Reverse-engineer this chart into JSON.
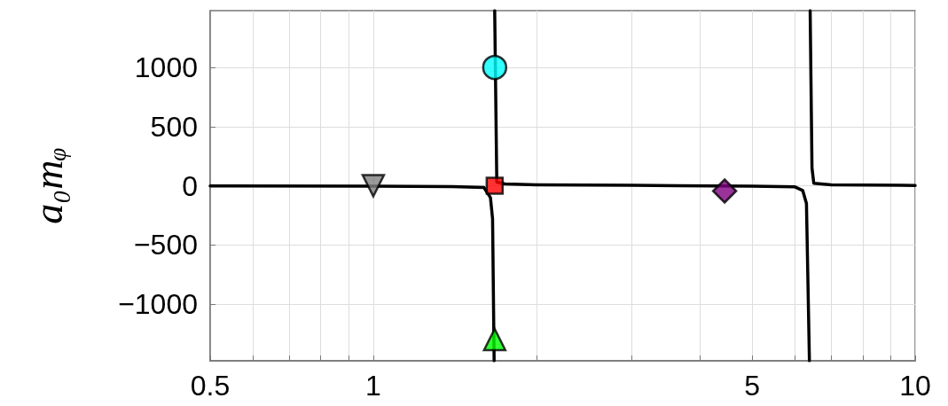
{
  "chart_data": {
    "type": "line",
    "ylabel": "a₀mᵩ",
    "log": "x",
    "grid": true,
    "xlim": [
      0.5,
      10
    ],
    "xticks": [
      0.5,
      {
        "value": 0.6,
        "label": null
      },
      {
        "value": 0.7,
        "label": null
      },
      {
        "value": 0.8,
        "label": null
      },
      {
        "value": 0.9,
        "label": null
      },
      1,
      {
        "value": 2,
        "label": null
      },
      {
        "value": 3,
        "label": null
      },
      {
        "value": 4,
        "label": null
      },
      5,
      {
        "value": 6,
        "label": null
      },
      {
        "value": 7,
        "label": null
      },
      {
        "value": 8,
        "label": null
      },
      {
        "value": 9,
        "label": null
      },
      10
    ],
    "ylim": [
      -1480,
      1480
    ],
    "yticks": [
      -1000,
      -500,
      0,
      500,
      1000
    ],
    "series": [
      {
        "color": "#000000",
        "marker": "none",
        "x": [
          0.5,
          1,
          1.4,
          1.6,
          1.645,
          1.66,
          1.671
        ],
        "values": [
          -2,
          -4,
          -8,
          -15,
          -100,
          -280,
          -1480
        ]
      },
      {
        "color": "#000000",
        "marker": "none",
        "x": [
          1.675,
          1.69,
          1.75,
          2,
          3,
          5,
          6,
          6.2,
          6.3,
          6.38
        ],
        "values": [
          1480,
          30,
          15,
          8,
          3,
          -3,
          -10,
          -40,
          -150,
          -1480
        ]
      },
      {
        "color": "#000000",
        "marker": "none",
        "x": [
          6.4,
          6.45,
          6.5,
          7,
          10
        ],
        "values": [
          1480,
          150,
          20,
          8,
          2
        ]
      },
      {
        "type": "scatter",
        "color": "#808080",
        "marker": "triangle_down",
        "x": [
          1
        ],
        "values": [
          0
        ]
      },
      {
        "type": "scatter",
        "color": "#00ffff",
        "marker": "circle",
        "x": [
          1.675
        ],
        "values": [
          1000
        ]
      },
      {
        "type": "scatter",
        "color": "#ff0000",
        "marker": "square",
        "x": [
          1.675
        ],
        "values": [
          0
        ]
      },
      {
        "type": "scatter",
        "color": "#800080",
        "marker": "diamond",
        "x": [
          4.45
        ],
        "values": [
          -45
        ]
      },
      {
        "type": "scatter",
        "color": "#00ff00",
        "marker": "triangle",
        "x": [
          1.675
        ],
        "values": [
          -1300
        ]
      }
    ]
  }
}
